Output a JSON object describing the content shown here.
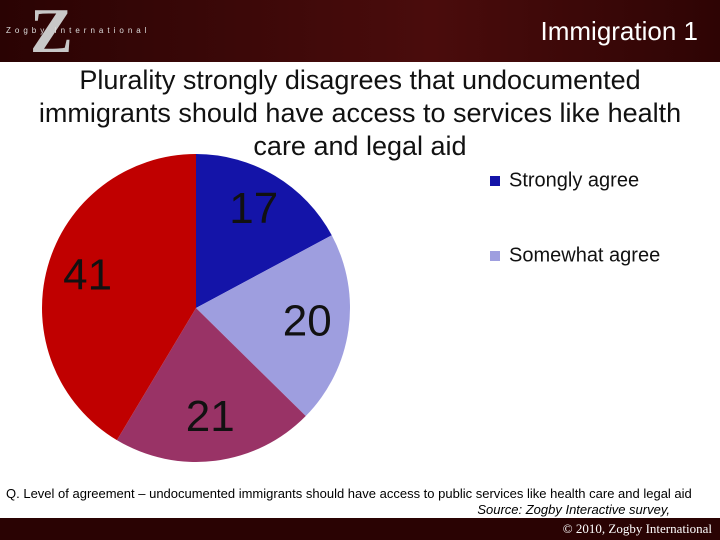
{
  "header": {
    "logo_letter": "Z",
    "logo_text": "Zogby International",
    "title": "Immigration 1"
  },
  "chart_data": {
    "type": "pie",
    "title": "Plurality strongly disagrees that undocumented immigrants should have access to services like health care and legal aid",
    "categories": [
      "Strongly agree",
      "Somewhat agree",
      null,
      null
    ],
    "values": [
      17,
      20,
      21,
      41
    ],
    "colors": [
      "#1414a8",
      "#9e9edf",
      "#993366",
      "#c00000"
    ]
  },
  "footer": {
    "question": "Q. Level of agreement – undocumented immigrants should have access to public services like health care and legal aid",
    "source": "Source:  Zogby Interactive survey,",
    "copyright": "© 2010, Zogby International"
  }
}
